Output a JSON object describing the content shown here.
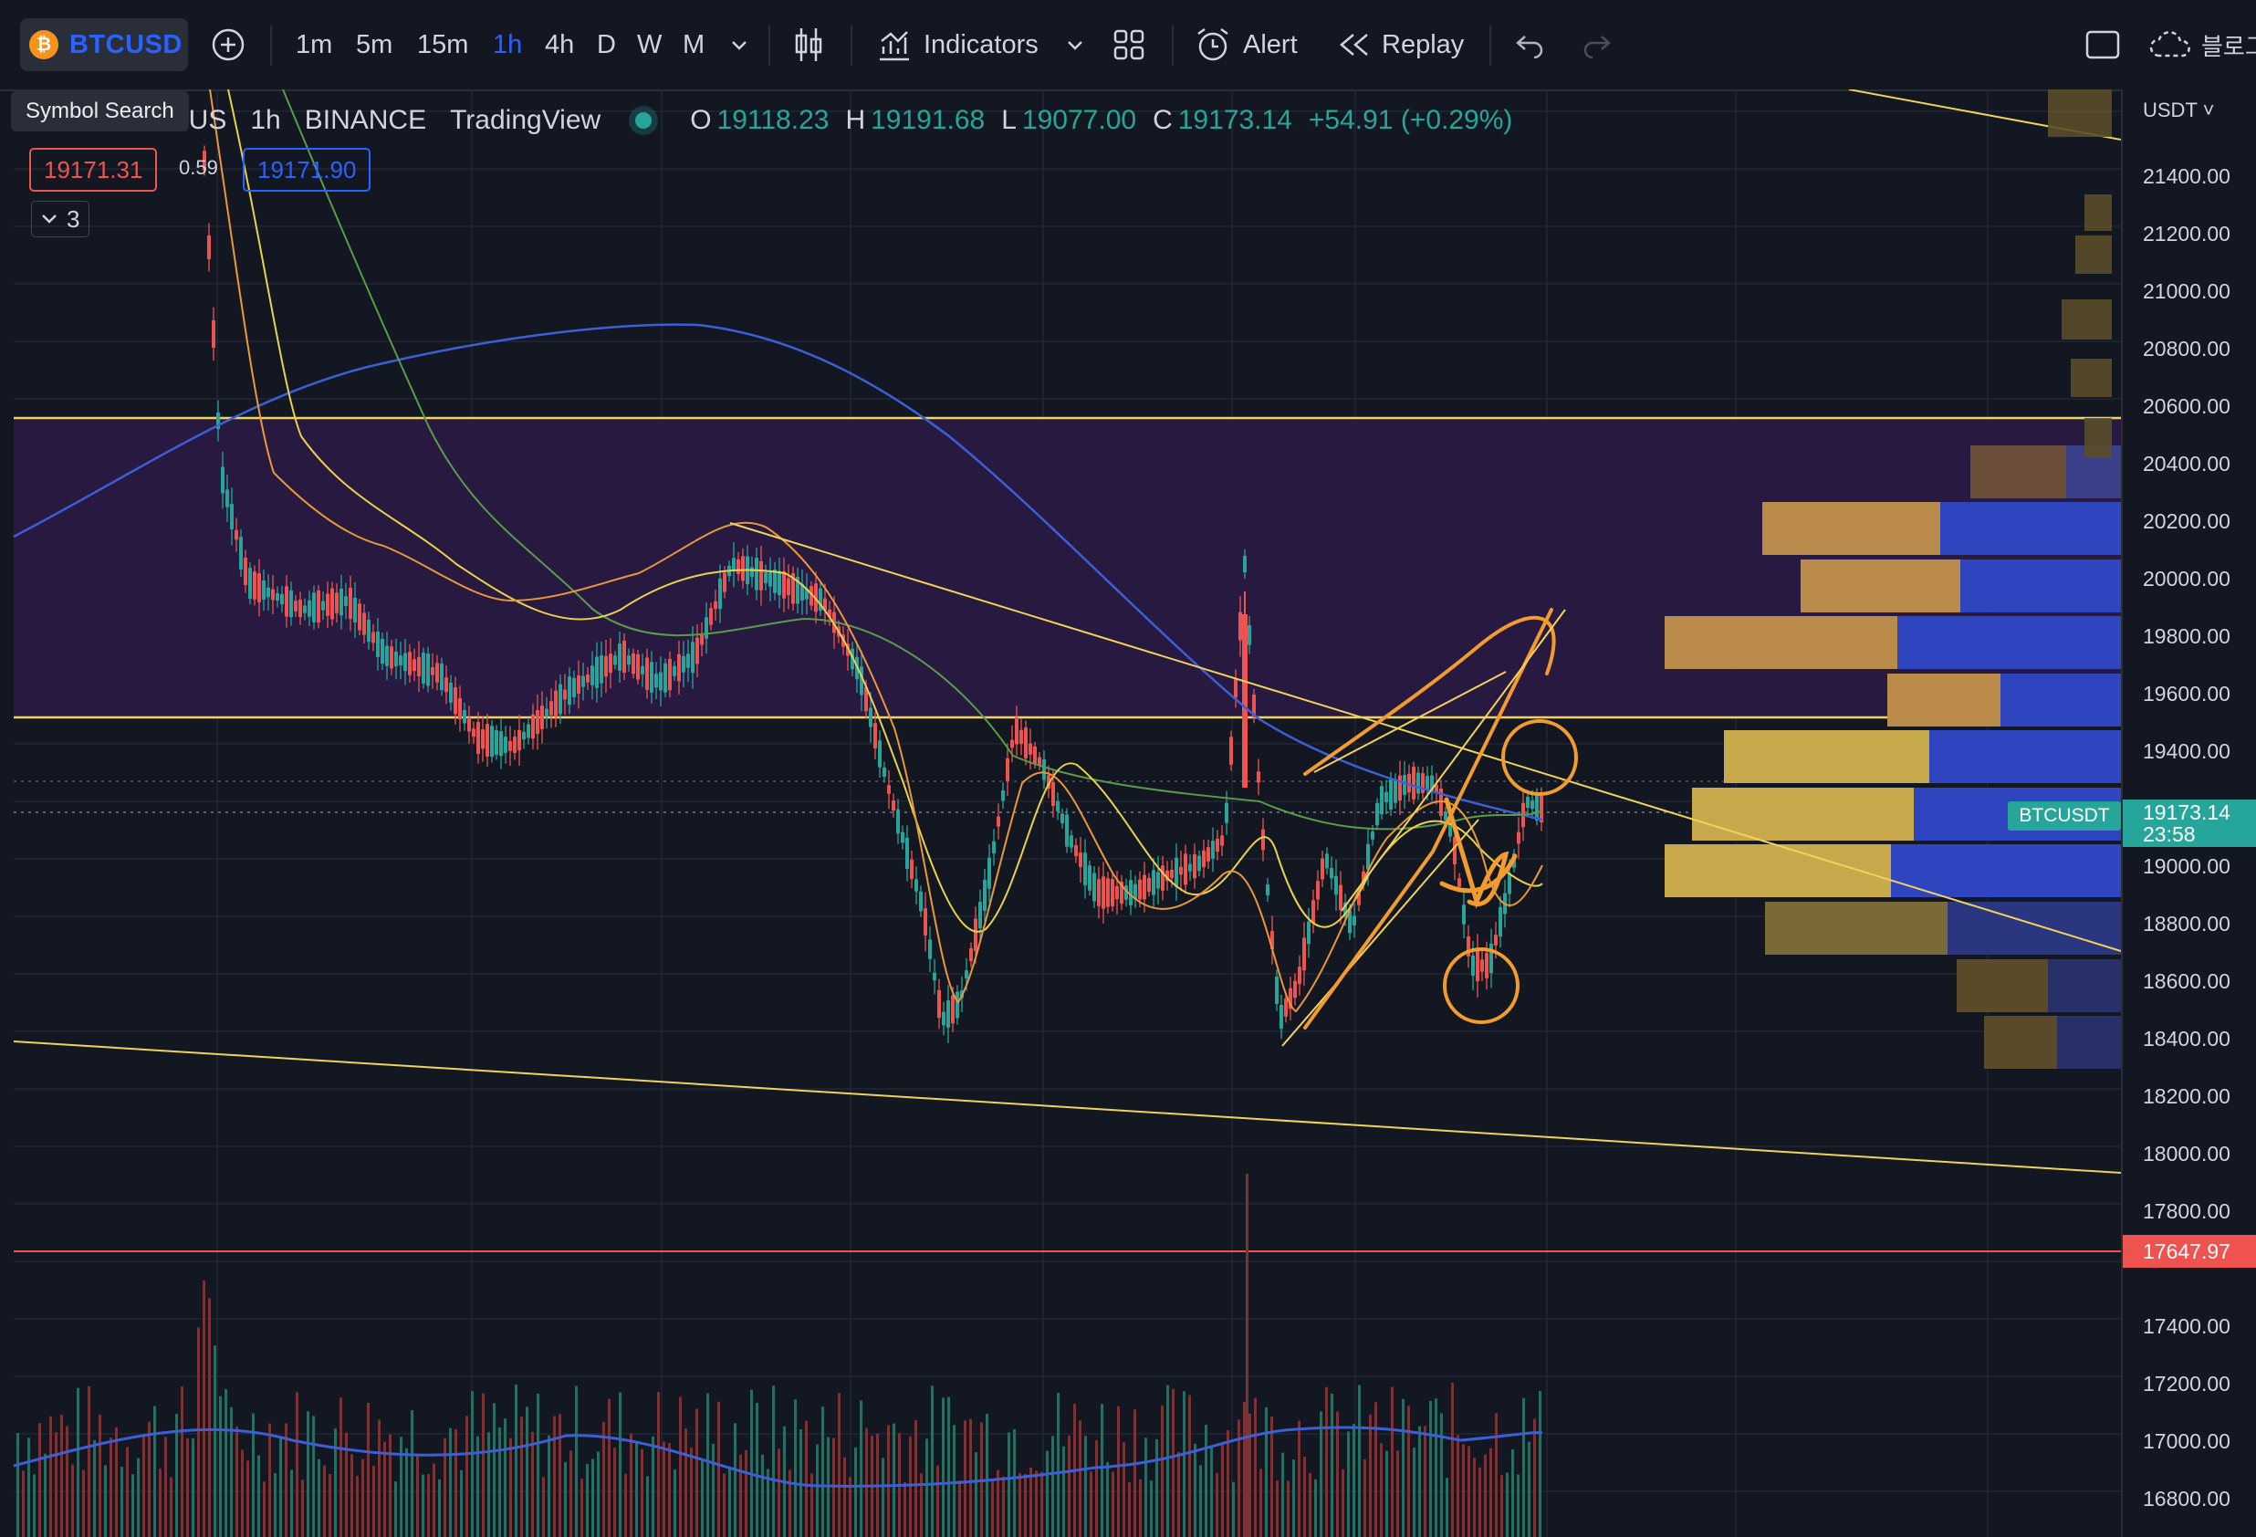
{
  "toolbar": {
    "symbol": "BTCUSD",
    "symbol_icon": "bitcoin-icon",
    "timeframes": [
      "1m",
      "5m",
      "15m",
      "1h",
      "4h",
      "D",
      "W",
      "M"
    ],
    "active_timeframe": "1h",
    "indicators_label": "Indicators",
    "alert_label": "Alert",
    "replay_label": "Replay",
    "right_truncated_label": "블로그"
  },
  "tooltip": {
    "text": "Symbol Search"
  },
  "legend": {
    "title_fragment": "erUS",
    "interval": "1h",
    "exchange": "BINANCE",
    "source": "TradingView",
    "open_label": "O",
    "open": "19118.23",
    "high_label": "H",
    "high": "19191.68",
    "low_label": "L",
    "low": "19077.00",
    "close_label": "C",
    "close": "19173.14",
    "change": "+54.91 (+0.29%)"
  },
  "order": {
    "sell": "19171.31",
    "spread": "0.59",
    "buy": "19171.90",
    "collapse_count": "3"
  },
  "price_axis": {
    "currency": "USDT",
    "labels": [
      "21400.00",
      "21200.00",
      "21000.00",
      "20800.00",
      "20600.00",
      "20400.00",
      "20200.00",
      "20000.00",
      "19800.00",
      "19600.00",
      "19400.00",
      "19000.00",
      "18800.00",
      "18600.00",
      "18400.00",
      "18200.00",
      "18000.00",
      "17800.00",
      "17400.00",
      "17200.00",
      "17000.00",
      "16800.00"
    ],
    "symbol_tag": "BTCUSDT",
    "last_price": "19173.14",
    "countdown": "23:58",
    "alert_price": "17647.97"
  },
  "colors": {
    "background": "#131722",
    "up": "#26a69a",
    "down": "#ef5350",
    "zone": "#2b1a45",
    "trendline": "#f0d35a",
    "annotation": "#f39c2e",
    "ma_blue": "#3d5fd6",
    "ma_green": "#5b9a4a",
    "ma_orange": "#e8983a",
    "ma_yellow": "#e8d24a",
    "accent": "#2962ff"
  }
}
